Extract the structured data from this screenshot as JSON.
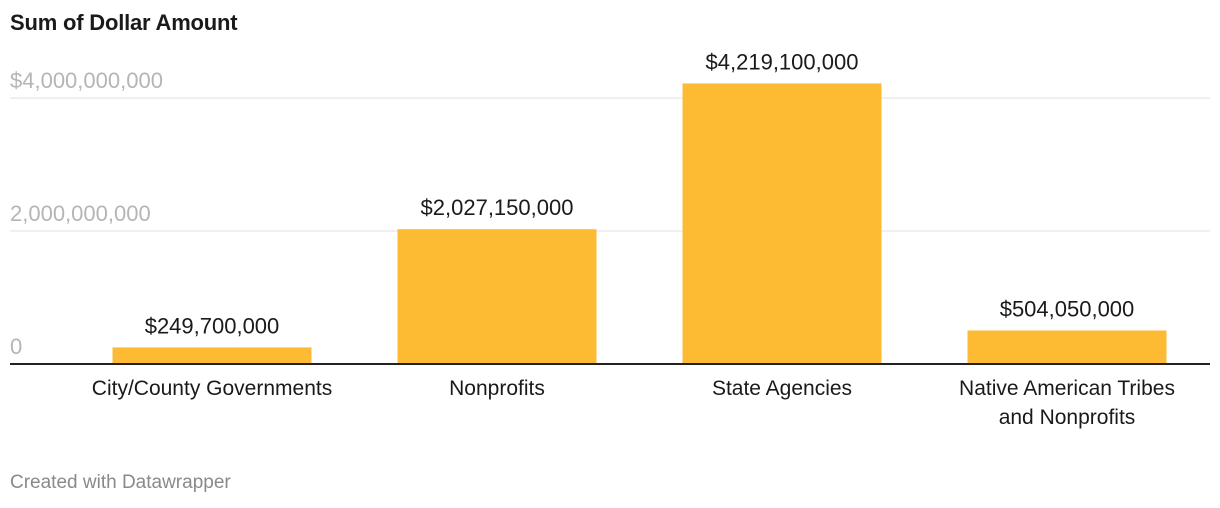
{
  "title": "Sum of Dollar Amount",
  "footer": "Created with Datawrapper",
  "colors": {
    "bar": "#fdbb34",
    "grid": "#e0e0e0",
    "axis": "#222222"
  },
  "chart_data": {
    "type": "bar",
    "title": "Sum of Dollar Amount",
    "categories": [
      "City/County Governments",
      "Nonprofits",
      "State Agencies",
      "Native American Tribes and Nonprofits"
    ],
    "category_lines": [
      [
        "City/County Governments"
      ],
      [
        "Nonprofits"
      ],
      [
        "State Agencies"
      ],
      [
        "Native American Tribes",
        "and Nonprofits"
      ]
    ],
    "values": [
      249700000,
      2027150000,
      4219100000,
      504050000
    ],
    "value_labels": [
      "$249,700,000",
      "$2,027,150,000",
      "$4,219,100,000",
      "$504,050,000"
    ],
    "ylim": [
      0,
      4219100000
    ],
    "yticks": [
      0,
      2000000000,
      4000000000
    ],
    "ytick_labels": [
      "0",
      "2,000,000,000",
      "$4,000,000,000"
    ],
    "grid": true,
    "xlabel": "",
    "ylabel": ""
  }
}
